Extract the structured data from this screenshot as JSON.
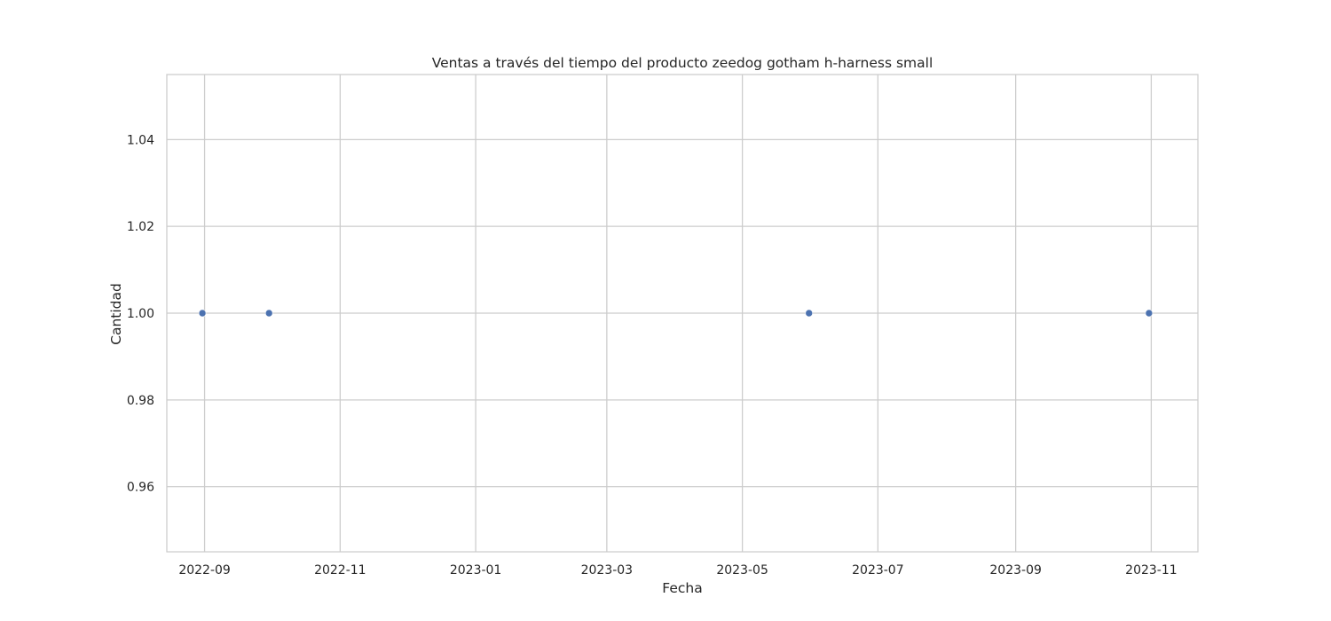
{
  "chart_data": {
    "type": "scatter",
    "title": "Ventas a través del tiempo del producto zeedog gotham h-harness small",
    "xlabel": "Fecha",
    "ylabel": "Cantidad",
    "x_axis_type": "date",
    "xlim": [
      "2022-08-15",
      "2023-11-22"
    ],
    "ylim": [
      0.945,
      1.055
    ],
    "x_ticks": [
      "2022-09-01",
      "2022-11-01",
      "2023-01-01",
      "2023-03-01",
      "2023-05-01",
      "2023-07-01",
      "2023-09-01",
      "2023-11-01"
    ],
    "x_tick_labels": [
      "2022-09",
      "2022-11",
      "2023-01",
      "2023-03",
      "2023-05",
      "2023-07",
      "2023-09",
      "2023-11"
    ],
    "y_ticks": [
      0.96,
      0.98,
      1.0,
      1.02,
      1.04
    ],
    "y_tick_labels": [
      "0.96",
      "0.98",
      "1.00",
      "1.02",
      "1.04"
    ],
    "grid": true,
    "series": [
      {
        "color": "#4c72b0",
        "points": [
          {
            "x": "2022-08-31",
            "y": 1
          },
          {
            "x": "2022-09-30",
            "y": 1
          },
          {
            "x": "2023-05-31",
            "y": 1
          },
          {
            "x": "2023-10-31",
            "y": 1
          }
        ]
      }
    ],
    "colors": {
      "grid": "#cccccc",
      "frame": "#cccccc",
      "text": "#262626",
      "background": "#ffffff"
    }
  }
}
